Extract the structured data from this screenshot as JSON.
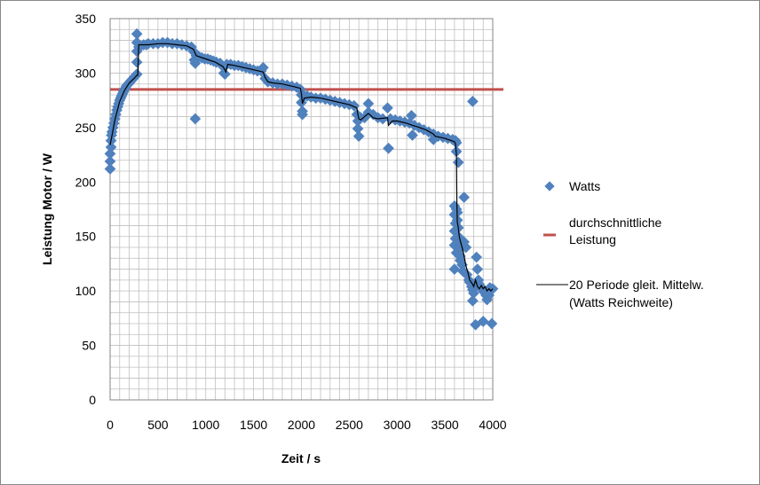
{
  "chart_data": {
    "type": "scatter",
    "title": "",
    "xlabel": "Zeit / s",
    "ylabel": "Leistung Motor / W",
    "xlim": [
      0,
      4000
    ],
    "ylim": [
      0,
      350
    ],
    "x_ticks": [
      "0",
      "500",
      "1000",
      "1500",
      "2000",
      "2500",
      "3000",
      "3500",
      "4000"
    ],
    "y_ticks": [
      "0",
      "50",
      "100",
      "150",
      "200",
      "250",
      "300",
      "350"
    ],
    "grid": true,
    "legend_position": "right",
    "colors": {
      "watts": "#4f81bd",
      "average": "#c0504d",
      "moving_average": "#000000",
      "grid": "#bfbfbf"
    },
    "series": [
      {
        "name": "Watts",
        "type": "scatter",
        "points": [
          [
            0,
            212
          ],
          [
            0,
            219
          ],
          [
            0,
            226
          ],
          [
            10,
            232
          ],
          [
            10,
            238
          ],
          [
            15,
            243
          ],
          [
            20,
            246
          ],
          [
            30,
            250
          ],
          [
            40,
            254
          ],
          [
            50,
            258
          ],
          [
            60,
            262
          ],
          [
            70,
            266
          ],
          [
            80,
            269
          ],
          [
            90,
            272
          ],
          [
            100,
            275
          ],
          [
            110,
            277
          ],
          [
            120,
            279
          ],
          [
            130,
            281
          ],
          [
            140,
            283
          ],
          [
            150,
            285
          ],
          [
            160,
            286
          ],
          [
            170,
            288
          ],
          [
            180,
            289
          ],
          [
            190,
            290
          ],
          [
            200,
            291
          ],
          [
            210,
            292
          ],
          [
            220,
            293
          ],
          [
            230,
            294
          ],
          [
            240,
            295
          ],
          [
            250,
            296
          ],
          [
            260,
            297
          ],
          [
            270,
            298
          ],
          [
            280,
            299
          ],
          [
            280,
            310
          ],
          [
            280,
            320
          ],
          [
            280,
            328
          ],
          [
            280,
            336
          ],
          [
            300,
            324
          ],
          [
            320,
            325
          ],
          [
            350,
            326
          ],
          [
            380,
            326
          ],
          [
            400,
            327
          ],
          [
            450,
            327
          ],
          [
            500,
            327
          ],
          [
            550,
            328
          ],
          [
            600,
            328
          ],
          [
            650,
            327
          ],
          [
            700,
            327
          ],
          [
            750,
            326
          ],
          [
            800,
            325
          ],
          [
            850,
            324
          ],
          [
            870,
            320
          ],
          [
            880,
            312
          ],
          [
            890,
            309
          ],
          [
            890,
            258
          ],
          [
            900,
            316
          ],
          [
            930,
            315
          ],
          [
            960,
            314
          ],
          [
            990,
            313
          ],
          [
            1020,
            313
          ],
          [
            1050,
            312
          ],
          [
            1080,
            311
          ],
          [
            1110,
            310
          ],
          [
            1150,
            309
          ],
          [
            1180,
            306
          ],
          [
            1190,
            300
          ],
          [
            1200,
            299
          ],
          [
            1220,
            308
          ],
          [
            1260,
            308
          ],
          [
            1300,
            307
          ],
          [
            1340,
            307
          ],
          [
            1380,
            306
          ],
          [
            1420,
            305
          ],
          [
            1460,
            304
          ],
          [
            1500,
            303
          ],
          [
            1540,
            302
          ],
          [
            1580,
            302
          ],
          [
            1600,
            305
          ],
          [
            1620,
            295
          ],
          [
            1650,
            292
          ],
          [
            1700,
            291
          ],
          [
            1750,
            290
          ],
          [
            1800,
            290
          ],
          [
            1850,
            289
          ],
          [
            1900,
            288
          ],
          [
            1950,
            287
          ],
          [
            1990,
            285
          ],
          [
            2000,
            280
          ],
          [
            2000,
            273
          ],
          [
            2010,
            265
          ],
          [
            2010,
            262
          ],
          [
            2030,
            279
          ],
          [
            2060,
            279
          ],
          [
            2100,
            278
          ],
          [
            2150,
            277
          ],
          [
            2200,
            277
          ],
          [
            2250,
            276
          ],
          [
            2300,
            275
          ],
          [
            2350,
            274
          ],
          [
            2400,
            273
          ],
          [
            2450,
            272
          ],
          [
            2500,
            271
          ],
          [
            2550,
            270
          ],
          [
            2580,
            262
          ],
          [
            2590,
            256
          ],
          [
            2590,
            249
          ],
          [
            2600,
            242
          ],
          [
            2620,
            259
          ],
          [
            2660,
            259
          ],
          [
            2700,
            272
          ],
          [
            2700,
            264
          ],
          [
            2750,
            262
          ],
          [
            2800,
            259
          ],
          [
            2850,
            258
          ],
          [
            2900,
            268
          ],
          [
            2910,
            231
          ],
          [
            2930,
            258
          ],
          [
            2980,
            257
          ],
          [
            3030,
            256
          ],
          [
            3080,
            255
          ],
          [
            3130,
            254
          ],
          [
            3150,
            261
          ],
          [
            3160,
            243
          ],
          [
            3180,
            252
          ],
          [
            3230,
            250
          ],
          [
            3280,
            248
          ],
          [
            3330,
            246
          ],
          [
            3380,
            244
          ],
          [
            3380,
            239
          ],
          [
            3430,
            242
          ],
          [
            3480,
            241
          ],
          [
            3530,
            240
          ],
          [
            3580,
            239
          ],
          [
            3610,
            238
          ],
          [
            3620,
            236
          ],
          [
            3620,
            228
          ],
          [
            3640,
            218
          ],
          [
            3600,
            178
          ],
          [
            3600,
            170
          ],
          [
            3610,
            162
          ],
          [
            3600,
            155
          ],
          [
            3610,
            148
          ],
          [
            3600,
            142
          ],
          [
            3600,
            120
          ],
          [
            3620,
            135
          ],
          [
            3620,
            175
          ],
          [
            3630,
            172
          ],
          [
            3630,
            165
          ],
          [
            3640,
            158
          ],
          [
            3640,
            150
          ],
          [
            3650,
            145
          ],
          [
            3650,
            138
          ],
          [
            3660,
            132
          ],
          [
            3660,
            128
          ],
          [
            3680,
            124
          ],
          [
            3690,
            118
          ],
          [
            3700,
            145
          ],
          [
            3700,
            186
          ],
          [
            3720,
            140
          ],
          [
            3730,
            115
          ],
          [
            3750,
            110
          ],
          [
            3760,
            108
          ],
          [
            3780,
            104
          ],
          [
            3790,
            101
          ],
          [
            3800,
            98
          ],
          [
            3790,
            91
          ],
          [
            3790,
            274
          ],
          [
            3810,
            104
          ],
          [
            3820,
            69
          ],
          [
            3830,
            131
          ],
          [
            3840,
            120
          ],
          [
            3850,
            110
          ],
          [
            3860,
            106
          ],
          [
            3880,
            103
          ],
          [
            3900,
            100
          ],
          [
            3900,
            72
          ],
          [
            3920,
            98
          ],
          [
            3930,
            96
          ],
          [
            3940,
            92
          ],
          [
            3950,
            100
          ],
          [
            3960,
            96
          ],
          [
            3970,
            103
          ],
          [
            3980,
            101
          ],
          [
            3990,
            70
          ],
          [
            4000,
            102
          ]
        ]
      },
      {
        "name": "durchschnittliche Leistung",
        "type": "hline",
        "y": 285
      },
      {
        "name": "20 Periode gleit. Mittelw. (Watts Reichweite)",
        "type": "line",
        "points": [
          [
            0,
            234
          ],
          [
            20,
            243
          ],
          [
            50,
            257
          ],
          [
            100,
            274
          ],
          [
            150,
            284
          ],
          [
            200,
            291
          ],
          [
            250,
            295
          ],
          [
            280,
            298
          ],
          [
            290,
            298
          ],
          [
            300,
            326
          ],
          [
            350,
            326
          ],
          [
            400,
            326
          ],
          [
            500,
            327
          ],
          [
            600,
            327
          ],
          [
            700,
            326
          ],
          [
            800,
            325
          ],
          [
            870,
            322
          ],
          [
            890,
            318
          ],
          [
            900,
            316
          ],
          [
            1000,
            313
          ],
          [
            1100,
            310
          ],
          [
            1180,
            306
          ],
          [
            1200,
            303
          ],
          [
            1210,
            301
          ],
          [
            1230,
            308
          ],
          [
            1300,
            307
          ],
          [
            1400,
            305
          ],
          [
            1500,
            303
          ],
          [
            1600,
            301
          ],
          [
            1620,
            296
          ],
          [
            1650,
            292
          ],
          [
            1700,
            291
          ],
          [
            1800,
            290
          ],
          [
            1900,
            288
          ],
          [
            1990,
            286
          ],
          [
            2000,
            281
          ],
          [
            2010,
            272
          ],
          [
            2030,
            277
          ],
          [
            2100,
            278
          ],
          [
            2200,
            277
          ],
          [
            2300,
            275
          ],
          [
            2400,
            273
          ],
          [
            2500,
            271
          ],
          [
            2580,
            268
          ],
          [
            2590,
            262
          ],
          [
            2600,
            258
          ],
          [
            2620,
            257
          ],
          [
            2700,
            263
          ],
          [
            2750,
            259
          ],
          [
            2800,
            258
          ],
          [
            2900,
            259
          ],
          [
            2910,
            252
          ],
          [
            2950,
            256
          ],
          [
            3000,
            256
          ],
          [
            3100,
            254
          ],
          [
            3160,
            252
          ],
          [
            3200,
            251
          ],
          [
            3300,
            248
          ],
          [
            3380,
            244
          ],
          [
            3400,
            242
          ],
          [
            3500,
            240
          ],
          [
            3600,
            237
          ],
          [
            3610,
            235
          ],
          [
            3620,
            225
          ],
          [
            3625,
            180
          ],
          [
            3630,
            163
          ],
          [
            3640,
            158
          ],
          [
            3650,
            150
          ],
          [
            3660,
            146
          ],
          [
            3680,
            140
          ],
          [
            3700,
            132
          ],
          [
            3720,
            123
          ],
          [
            3740,
            117
          ],
          [
            3760,
            110
          ],
          [
            3790,
            106
          ],
          [
            3800,
            104
          ],
          [
            3820,
            110
          ],
          [
            3840,
            104
          ],
          [
            3860,
            102
          ],
          [
            3880,
            105
          ],
          [
            3900,
            102
          ],
          [
            3920,
            104
          ],
          [
            3940,
            100
          ],
          [
            3960,
            102
          ],
          [
            3980,
            100
          ],
          [
            4000,
            102
          ]
        ]
      }
    ]
  }
}
